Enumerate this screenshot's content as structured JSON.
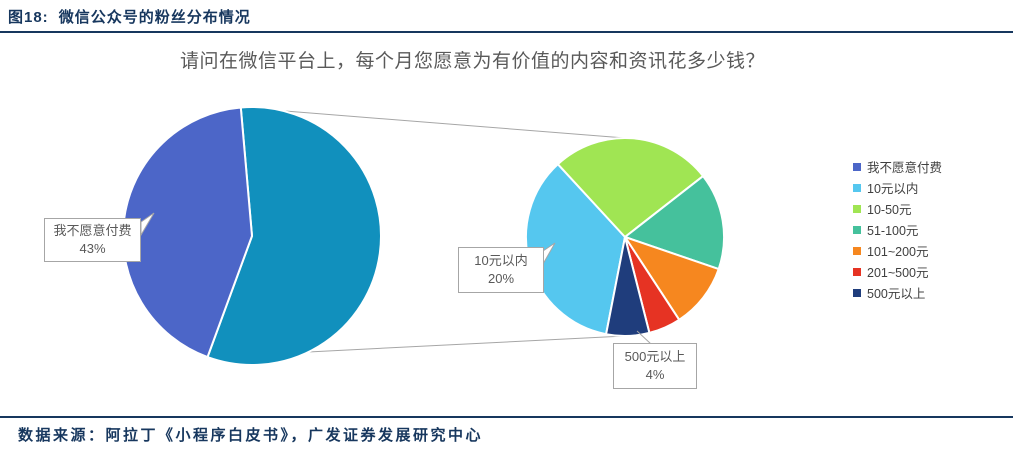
{
  "figure": {
    "label": "图18:",
    "title": "微信公众号的粉丝分布情况"
  },
  "chart_data": {
    "type": "pie",
    "variant": "pie-of-pie",
    "title": "请问在微信平台上，每个月您愿意为有价值的内容和资讯花多少钱？",
    "categories": [
      "我不愿意付费",
      "10元以内",
      "10-50元",
      "51-100元",
      "101~200元",
      "201~500元",
      "500元以上"
    ],
    "values": [
      43,
      20,
      15,
      9,
      6,
      3,
      4
    ],
    "unit": "%",
    "colors": [
      "#4c66c8",
      "#55c7ef",
      "#a0e553",
      "#45c19c",
      "#f6871f",
      "#e63323",
      "#1f3d7c"
    ],
    "other_slice_color": "#1190bd",
    "legend_position": "right",
    "primary_start_angle": -5,
    "secondary_start_angle": 191,
    "callouts": [
      {
        "label": "我不愿意付费",
        "value": "43%"
      },
      {
        "label": "10元以内",
        "value": "20%"
      },
      {
        "label": "500元以上",
        "value": "4%"
      }
    ]
  },
  "theme": {
    "header_color": "#17375e",
    "title_color": "#595959",
    "callout_border_color": "#a6a6a6",
    "connector_color": "#a6a6a6"
  },
  "footer": {
    "source": "数据来源：阿拉丁《小程序白皮书》，广发证券发展研究中心"
  }
}
